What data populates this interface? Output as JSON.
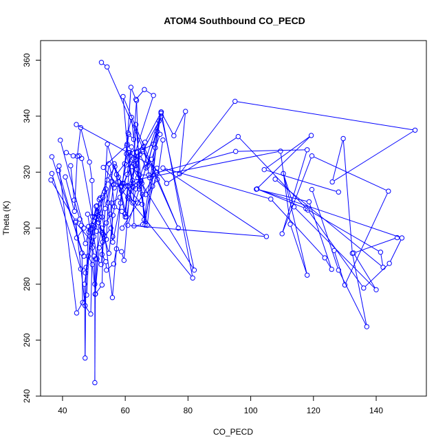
{
  "chart_data": {
    "type": "line",
    "title": "ATOM4 Southbound CO_PECD",
    "xlabel": "CO_PECD",
    "ylabel": "Theta (K)",
    "xlim": [
      33,
      156
    ],
    "ylim": [
      240,
      367
    ],
    "xticks": [
      40,
      60,
      80,
      100,
      120,
      140
    ],
    "yticks": [
      240,
      260,
      280,
      300,
      320,
      340,
      360
    ],
    "grid": false,
    "legend": "none",
    "line_color": "#0000ff",
    "marker": "open-circle",
    "series": [
      {
        "points": [
          [
            52.4,
            359.2
          ],
          [
            54.2,
            357.6
          ],
          [
            76.9,
            300.0
          ],
          [
            59.3,
            347.0
          ],
          [
            60.6,
            330.0
          ],
          [
            61.8,
            350.3
          ],
          [
            63.4,
            346.0
          ],
          [
            66.1,
            349.5
          ],
          [
            69.0,
            347.4
          ],
          [
            62.6,
            325.0
          ],
          [
            58.8,
            313.4
          ],
          [
            55.9,
            275.2
          ],
          [
            52.0,
            310.8
          ],
          [
            51.0,
            305.4
          ],
          [
            50.0,
            297.0
          ],
          [
            47.3,
            284.0
          ],
          [
            50.0,
            301.0
          ],
          [
            52.9,
            311.0
          ],
          [
            53.8,
            314.0
          ],
          [
            56.0,
            297.0
          ],
          [
            55.6,
            309.0
          ],
          [
            58.3,
            311.0
          ],
          [
            60.8,
            315.2
          ],
          [
            62.4,
            309.0
          ],
          [
            63.4,
            314.0
          ],
          [
            71.4,
            341.0
          ],
          [
            67.0,
            322.0
          ]
        ]
      },
      {
        "points": [
          [
            36.6,
            325.5
          ],
          [
            46.8,
            290.0
          ],
          [
            48.2,
            290.0
          ],
          [
            49.5,
            287.0
          ],
          [
            50.5,
            276.5
          ],
          [
            51.5,
            302.0
          ],
          [
            53.4,
            297.0
          ],
          [
            55.4,
            300.0
          ],
          [
            56.0,
            295.0
          ],
          [
            58.5,
            309.0
          ],
          [
            60.9,
            334.0
          ],
          [
            62.0,
            339.6
          ],
          [
            64.0,
            318.0
          ],
          [
            65.5,
            312.0
          ],
          [
            66.3,
            301.1
          ],
          [
            71.4,
            341.5
          ],
          [
            75.5,
            333.0
          ],
          [
            79.2,
            341.7
          ],
          [
            77.3,
            319.4
          ],
          [
            95.0,
            345.3
          ],
          [
            152.4,
            335.0
          ],
          [
            126.0,
            316.5
          ],
          [
            129.5,
            332.0
          ],
          [
            132.4,
            291.0
          ],
          [
            137.0,
            264.8
          ],
          [
            128.0,
            285.0
          ],
          [
            119.5,
            313.8
          ]
        ]
      },
      {
        "points": [
          [
            39.3,
            331.4
          ],
          [
            46.8,
            300.0
          ],
          [
            44.5,
            296.5
          ],
          [
            44.2,
            302.0
          ],
          [
            49.5,
            295.0
          ],
          [
            48.0,
            305.0
          ],
          [
            52.6,
            304.0
          ],
          [
            54.8,
            323.0
          ],
          [
            56.5,
            314.4
          ],
          [
            59.5,
            316.0
          ],
          [
            60.6,
            319.2
          ],
          [
            61.5,
            327.0
          ],
          [
            63.4,
            324.5
          ],
          [
            65.5,
            328.0
          ],
          [
            69.0,
            330.0
          ],
          [
            71.5,
            340.0
          ],
          [
            82.0,
            285.0
          ],
          [
            62.0,
            322.0
          ],
          [
            64.5,
            319.0
          ],
          [
            67.5,
            319.0
          ],
          [
            95.2,
            327.4
          ],
          [
            118.0,
            328.0
          ],
          [
            110.0,
            298.0
          ],
          [
            119.5,
            325.8
          ],
          [
            143.9,
            313.2
          ],
          [
            130.0,
            279.7
          ],
          [
            126.6,
            292.0
          ]
        ]
      },
      {
        "points": [
          [
            36.3,
            317.2
          ],
          [
            44.2,
            302.5
          ],
          [
            47.2,
            272.3
          ],
          [
            48.3,
            300.6
          ],
          [
            50.0,
            290.0
          ],
          [
            50.3,
            280.0
          ],
          [
            50.3,
            244.8
          ],
          [
            50.5,
            289.0
          ],
          [
            52.5,
            300.0
          ],
          [
            54.8,
            291.0
          ],
          [
            56.1,
            304.6
          ],
          [
            58.0,
            316.5
          ],
          [
            60.4,
            304.0
          ],
          [
            63.8,
            327.0
          ],
          [
            66.3,
            330.7
          ],
          [
            71.5,
            341.5
          ],
          [
            81.5,
            282.2
          ],
          [
            53.0,
            321.7
          ],
          [
            60.5,
            329.5
          ],
          [
            62.3,
            317.0
          ],
          [
            109.5,
            327.5
          ],
          [
            112.6,
            301.4
          ],
          [
            118.0,
            283.2
          ],
          [
            110.4,
            319.5
          ],
          [
            113.8,
            307.6
          ],
          [
            140.0,
            278.0
          ],
          [
            132.8,
            291.1
          ],
          [
            146.7,
            296.6
          ]
        ]
      },
      {
        "points": [
          [
            36.6,
            319.5
          ],
          [
            45.8,
            285.4
          ],
          [
            47.5,
            286.0
          ],
          [
            47.2,
            253.6
          ],
          [
            47.0,
            280.0
          ],
          [
            49.6,
            300.0
          ],
          [
            51.0,
            289.0
          ],
          [
            52.3,
            287.0
          ],
          [
            53.6,
            307.0
          ],
          [
            56.5,
            323.0
          ],
          [
            59.9,
            305.0
          ],
          [
            62.0,
            329.0
          ],
          [
            64.0,
            325.5
          ],
          [
            64.3,
            316.0
          ],
          [
            67.0,
            301.0
          ],
          [
            70.8,
            338.3
          ],
          [
            65.5,
            327.3
          ],
          [
            73.2,
            316.0
          ],
          [
            96.0,
            332.7
          ],
          [
            118.2,
            306.5
          ],
          [
            136.0,
            278.6
          ],
          [
            144.2,
            287.4
          ],
          [
            148.2,
            296.5
          ],
          [
            102.0,
            314.0
          ],
          [
            117.6,
            307.0
          ],
          [
            141.4,
            291.4
          ],
          [
            142.2,
            286.0
          ],
          [
            107.8,
            317.5
          ]
        ]
      },
      {
        "points": [
          [
            38.9,
            322.2
          ],
          [
            44.5,
            269.7
          ],
          [
            47.7,
            276.1
          ],
          [
            48.8,
            299.5
          ],
          [
            51.0,
            308.0
          ],
          [
            51.8,
            304.0
          ],
          [
            53.4,
            313.0
          ],
          [
            54.3,
            330.0
          ],
          [
            57.2,
            319.2
          ],
          [
            59.8,
            323.0
          ],
          [
            61.0,
            327.0
          ],
          [
            62.3,
            315.0
          ],
          [
            63.4,
            337.0
          ],
          [
            65.0,
            317.0
          ],
          [
            66.0,
            303.0
          ],
          [
            70.2,
            334.5
          ],
          [
            64.5,
            314.0
          ],
          [
            60.8,
            301.0
          ],
          [
            105.0,
            297.0
          ],
          [
            72.0,
            321.5
          ],
          [
            106.4,
            310.4
          ],
          [
            123.6,
            289.4
          ],
          [
            125.8,
            285.3
          ],
          [
            118.6,
            309.4
          ],
          [
            101.8,
            313.9
          ],
          [
            119.3,
            333.1
          ],
          [
            104.3,
            320.9
          ],
          [
            128.0,
            312.9
          ]
        ]
      },
      {
        "points": [
          [
            38.7,
            320.6
          ],
          [
            46.2,
            291.1
          ],
          [
            46.4,
            273.4
          ],
          [
            49.0,
            269.3
          ],
          [
            49.5,
            293.0
          ],
          [
            51.2,
            306.0
          ],
          [
            51.7,
            310.2
          ],
          [
            54.3,
            317.2
          ],
          [
            56.7,
            322.0
          ],
          [
            59.0,
            315.0
          ],
          [
            61.1,
            333.5
          ],
          [
            62.7,
            331.7
          ],
          [
            63.6,
            345.6
          ],
          [
            64.5,
            315.0
          ],
          [
            65.0,
            316.6
          ],
          [
            60.2,
            315.0
          ],
          [
            65.4,
            308.5
          ],
          [
            64.0,
            309.0
          ],
          [
            60.8,
            311.0
          ],
          [
            62.5,
            316.0
          ],
          [
            62.8,
            300.8
          ],
          [
            65.6,
            301.3
          ],
          [
            70.1,
            320.0
          ],
          [
            59.0,
            300.0
          ]
        ]
      },
      {
        "points": [
          [
            40.9,
            318.3
          ],
          [
            43.8,
            306.0
          ],
          [
            44.7,
            325.7
          ],
          [
            45.8,
            335.9
          ],
          [
            48.6,
            323.6
          ],
          [
            49.4,
            317.0
          ],
          [
            49.6,
            304.1
          ],
          [
            50.2,
            304.0
          ],
          [
            51.6,
            303.0
          ],
          [
            52.8,
            295.0
          ],
          [
            52.6,
            290.6
          ],
          [
            53.8,
            288.0
          ],
          [
            54.0,
            285.0
          ],
          [
            56.3,
            287.2
          ],
          [
            57.2,
            292.6
          ],
          [
            58.8,
            291.6
          ],
          [
            59.6,
            288.5
          ],
          [
            61.2,
            310.5
          ],
          [
            62.5,
            314.6
          ],
          [
            60.4,
            326.5
          ],
          [
            65.8,
            329.0
          ],
          [
            67.8,
            318.0
          ],
          [
            70.1,
            321.4
          ],
          [
            44.4,
            337.0
          ]
        ]
      },
      {
        "points": [
          [
            41.2,
            327.0
          ],
          [
            43.4,
            325.8
          ],
          [
            45.3,
            325.8
          ],
          [
            46.1,
            324.9
          ],
          [
            49.8,
            302.5
          ],
          [
            50.2,
            300.5
          ],
          [
            50.8,
            298.9
          ],
          [
            53.0,
            297.8
          ],
          [
            52.6,
            279.7
          ],
          [
            50.4,
            276.4
          ],
          [
            51.7,
            293.0
          ],
          [
            54.0,
            296.0
          ],
          [
            54.5,
            309.0
          ],
          [
            55.6,
            316.6
          ],
          [
            56.6,
            307.6
          ],
          [
            58.9,
            306.0
          ],
          [
            60.0,
            304.0
          ],
          [
            61.0,
            314.9
          ],
          [
            63.2,
            322.3
          ],
          [
            64.7,
            326.4
          ],
          [
            66.6,
            321.5
          ],
          [
            68.4,
            324.6
          ],
          [
            69.6,
            328.7
          ],
          [
            71.1,
            333.5
          ]
        ]
      },
      {
        "points": [
          [
            42.6,
            322.3
          ],
          [
            43.7,
            310.0
          ],
          [
            45.5,
            303.2
          ],
          [
            46.0,
            301.0
          ],
          [
            47.3,
            294.5
          ],
          [
            48.4,
            298.6
          ],
          [
            49.4,
            301.0
          ],
          [
            50.7,
            307.8
          ],
          [
            51.2,
            304.5
          ],
          [
            52.6,
            298.5
          ],
          [
            54.0,
            301.9
          ],
          [
            55.2,
            305.0
          ],
          [
            56.2,
            315.5
          ],
          [
            57.8,
            318.2
          ],
          [
            59.0,
            316.0
          ],
          [
            60.3,
            322.6
          ],
          [
            62.2,
            324.4
          ],
          [
            62.8,
            322.8
          ],
          [
            63.7,
            321.0
          ],
          [
            65.3,
            316.0
          ],
          [
            66.5,
            312.0
          ],
          [
            68.7,
            315.0
          ],
          [
            70.2,
            317.4
          ],
          [
            72.0,
            331.5
          ]
        ]
      }
    ]
  }
}
